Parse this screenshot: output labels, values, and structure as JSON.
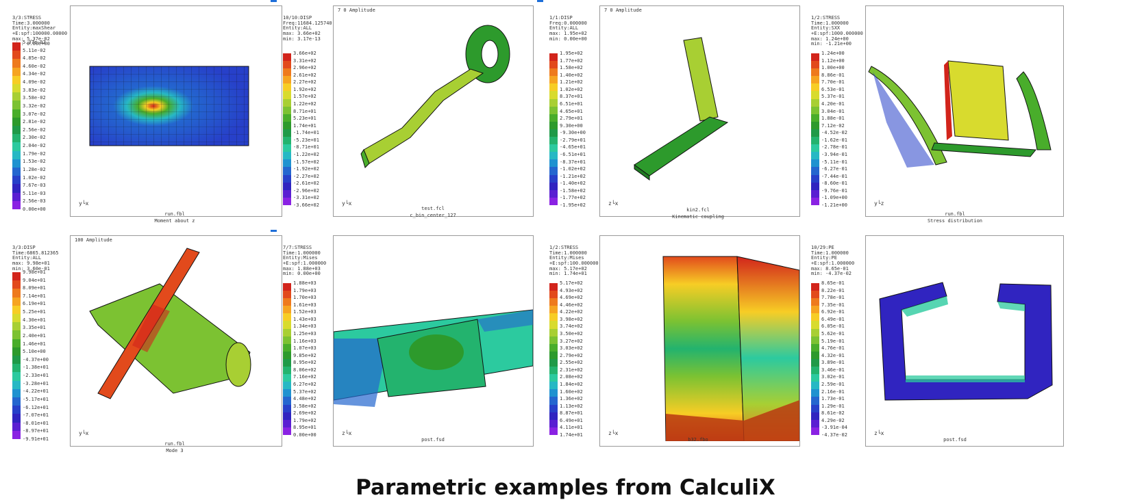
{
  "title": "Parametric examples from CalculiX",
  "scale_colors": [
    "#d2241b",
    "#e24a1c",
    "#ee7a1d",
    "#f6a421",
    "#f7cd25",
    "#d8db2e",
    "#a8cf33",
    "#7cc232",
    "#49ad2b",
    "#2d9a2c",
    "#1f9a48",
    "#23b36e",
    "#2cca9f",
    "#27b8c4",
    "#1f92d0",
    "#2466cf",
    "#2740c9",
    "#3024c0",
    "#5a1fd2",
    "#8a22e3"
  ],
  "panels": [
    {
      "info": [
        "3/3:STRESS",
        "Time:3.000000",
        "Entity:maxShear",
        "+E:spf:100000.00000",
        "max: 5.37e-02",
        "min: 0.00e+00"
      ],
      "legend": [
        "5.37e-02",
        "5.11e-02",
        "4.85e-02",
        "4.60e-02",
        "4.34e-02",
        "4.09e-02",
        "3.83e-02",
        "3.58e-02",
        "3.32e-02",
        "3.07e-02",
        "2.81e-02",
        "2.56e-02",
        "2.30e-02",
        "2.04e-02",
        "1.79e-02",
        "1.53e-02",
        "1.28e-02",
        "1.02e-02",
        "7.67e-03",
        "5.11e-03",
        "2.56e-03",
        "0.00e+00"
      ],
      "view_label": "",
      "axis": "y└x",
      "caption": [
        "run.fbl",
        "Moment about z"
      ]
    },
    {
      "info": [
        "10/10:DISP",
        "Freq:11684.125740",
        "Entity:ALL",
        "",
        "max: 3.66e+02",
        "min: 3.17e-13"
      ],
      "legend": [
        "3.66e+02",
        "3.31e+02",
        "2.96e+02",
        "2.61e+02",
        "2.27e+02",
        "1.92e+02",
        "1.57e+02",
        "1.22e+02",
        "8.71e+01",
        "5.23e+01",
        "1.74e+01",
        "-1.74e+01",
        "-5.23e+01",
        "-8.71e+01",
        "-1.22e+02",
        "-1.57e+02",
        "-1.92e+02",
        "-2.27e+02",
        "-2.61e+02",
        "-2.96e+02",
        "-3.31e+02",
        "-3.66e+02"
      ],
      "view_label": "7 0 Amplitude",
      "axis": "y└x",
      "caption": [
        "test.fcl",
        "c_bin_center_127"
      ]
    },
    {
      "info": [
        "1/1:DISP",
        "Freq:0.000000",
        "Entity:ALL",
        "",
        "max: 1.95e+02",
        "min: 0.00e+00"
      ],
      "legend": [
        "1.95e+02",
        "1.77e+02",
        "1.58e+02",
        "1.40e+02",
        "1.21e+02",
        "1.02e+02",
        "8.37e+01",
        "6.51e+01",
        "4.65e+01",
        "2.79e+01",
        "9.30e+00",
        "-9.30e+00",
        "-2.79e+01",
        "-4.65e+01",
        "-6.51e+01",
        "-8.37e+01",
        "-1.02e+02",
        "-1.21e+02",
        "-1.40e+02",
        "-1.58e+02",
        "-1.77e+02",
        "-1.95e+02"
      ],
      "view_label": "7 0 Amplitude",
      "axis": "z└x",
      "caption": [
        "kin2.fcl",
        "Kinematic coupling"
      ]
    },
    {
      "info": [
        "1/2:STRESS",
        "Time:1.000000",
        "Entity:SXX",
        "+E:spf:1000.000000",
        "max: 1.24e+00",
        "min: -1.21e+00"
      ],
      "legend": [
        "1.24e+00",
        "1.12e+00",
        "1.00e+00",
        "8.86e-01",
        "7.70e-01",
        "6.53e-01",
        "5.37e-01",
        "4.20e-01",
        "3.04e-01",
        "1.88e-01",
        "7.12e-02",
        "-4.52e-02",
        "-1.62e-01",
        "-2.78e-01",
        "-3.94e-01",
        "-5.11e-01",
        "-6.27e-01",
        "-7.44e-01",
        "-8.60e-01",
        "-9.76e-01",
        "-1.09e+00",
        "-1.21e+00"
      ],
      "view_label": "",
      "axis": "y└z",
      "caption": [
        "run.fbl",
        "Stress distribution"
      ]
    },
    {
      "info": [
        "3/3:DISP",
        "Time:6865.812365",
        "Entity:ALL",
        "",
        "max: 9.98e+01",
        "min: 3.60e-01"
      ],
      "legend": [
        "9.98e+01",
        "9.04e+01",
        "8.09e+01",
        "7.14e+01",
        "6.19e+01",
        "5.25e+01",
        "4.30e+01",
        "3.35e+01",
        "2.40e+01",
        "1.46e+01",
        "5.10e+00",
        "-4.37e+00",
        "-1.38e+01",
        "-2.33e+01",
        "-3.28e+01",
        "-4.22e+01",
        "-5.17e+01",
        "-6.12e+01",
        "-7.07e+01",
        "-8.01e+01",
        "-8.97e+01",
        "-9.91e+01"
      ],
      "view_label": "100 Amplitude",
      "axis": "y└x",
      "caption": [
        "run.fbl",
        "Mode 3"
      ]
    },
    {
      "info": [
        "7/7:STRESS",
        "Time:1.000000",
        "Entity:Mises",
        "+E:spf:1.000000",
        "max: 1.88e+03",
        "min: 0.00e+00"
      ],
      "legend": [
        "1.88e+03",
        "1.79e+03",
        "1.70e+03",
        "1.61e+03",
        "1.52e+03",
        "1.43e+03",
        "1.34e+03",
        "1.25e+03",
        "1.16e+03",
        "1.07e+03",
        "9.85e+02",
        "8.95e+02",
        "8.06e+02",
        "7.16e+02",
        "6.27e+02",
        "5.37e+02",
        "4.48e+02",
        "3.58e+02",
        "2.69e+02",
        "1.79e+02",
        "8.95e+01",
        "0.00e+00"
      ],
      "view_label": "",
      "axis": "z└x",
      "caption": [
        "post.fsd",
        ""
      ]
    },
    {
      "info": [
        "1/2:STRESS",
        "Time:1.000000",
        "Entity:Mises",
        "+E:spf:100.000000",
        "max: 5.17e+02",
        "min: 1.74e+01"
      ],
      "legend": [
        "5.17e+02",
        "4.93e+02",
        "4.69e+02",
        "4.46e+02",
        "4.22e+02",
        "3.98e+02",
        "3.74e+02",
        "3.50e+02",
        "3.27e+02",
        "3.03e+02",
        "2.79e+02",
        "2.55e+02",
        "2.31e+02",
        "2.08e+02",
        "1.84e+02",
        "1.60e+02",
        "1.36e+02",
        "1.13e+02",
        "8.87e+01",
        "6.49e+01",
        "4.11e+01",
        "1.74e+01"
      ],
      "view_label": "",
      "axis": "z└x",
      "caption": [
        "b32.fbo",
        ""
      ]
    },
    {
      "info": [
        "10/29:PE",
        "Time:1.000000",
        "Entity:PE",
        "+E:spf:1.000000",
        "max: 8.65e-01",
        "min: -4.37e-02"
      ],
      "legend": [
        "8.65e-01",
        "8.22e-01",
        "7.78e-01",
        "7.35e-01",
        "6.92e-01",
        "6.49e-01",
        "6.05e-01",
        "5.62e-01",
        "5.19e-01",
        "4.76e-01",
        "4.32e-01",
        "3.89e-01",
        "3.46e-01",
        "3.02e-01",
        "2.59e-01",
        "2.16e-01",
        "1.73e-01",
        "1.29e-01",
        "8.61e-02",
        "4.29e-02",
        "-3.91e-04",
        "-4.37e-02"
      ],
      "view_label": "",
      "axis": "z└x",
      "caption": [
        "post.fsd",
        ""
      ]
    }
  ]
}
